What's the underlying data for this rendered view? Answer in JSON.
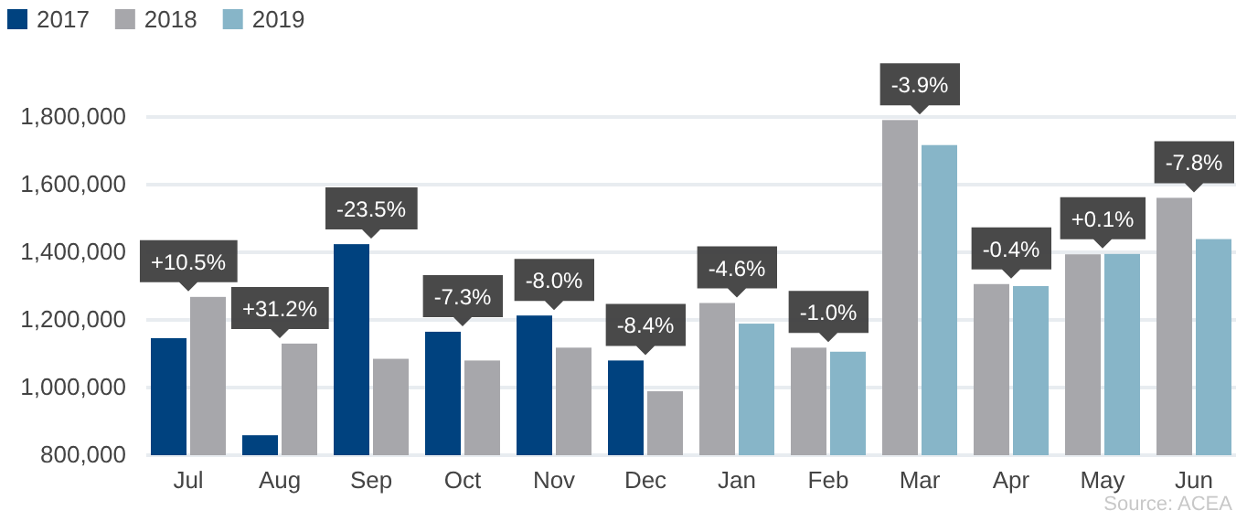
{
  "chart_data": {
    "type": "bar",
    "categories": [
      "Jul",
      "Aug",
      "Sep",
      "Oct",
      "Nov",
      "Dec",
      "Jan",
      "Feb",
      "Mar",
      "Apr",
      "May",
      "Jun"
    ],
    "series": [
      {
        "name": "2017",
        "color": "#00427f",
        "values": [
          1146000,
          859000,
          1424000,
          1165000,
          1213000,
          1080000,
          null,
          null,
          null,
          null,
          null,
          null
        ]
      },
      {
        "name": "2018",
        "color": "#a7a7ab",
        "values": [
          1268000,
          1130000,
          1085000,
          1080000,
          1118000,
          989000,
          1250000,
          1118000,
          1791000,
          1306000,
          1394000,
          1561000
        ]
      },
      {
        "name": "2019",
        "color": "#87b5c8",
        "values": [
          null,
          null,
          null,
          null,
          null,
          null,
          1189000,
          1106000,
          1717000,
          1300000,
          1395000,
          1439000
        ]
      }
    ],
    "ylim": [
      800000,
      1800000
    ],
    "yticks": [
      {
        "value": 800000,
        "label": "800,000"
      },
      {
        "value": 1000000,
        "label": "1,000,000"
      },
      {
        "value": 1200000,
        "label": "1,200,000"
      },
      {
        "value": 1400000,
        "label": "1,400,000"
      },
      {
        "value": 1600000,
        "label": "1,600,000"
      },
      {
        "value": 1800000,
        "label": "1,800,000"
      }
    ],
    "grid": "y",
    "legend": "top left",
    "annotations": [
      "+10.5%",
      "+31.2%",
      "-23.5%",
      "-7.3%",
      "-8.0%",
      "-8.4%",
      "-4.6%",
      "-1.0%",
      "-3.9%",
      "-0.4%",
      "+0.1%",
      "-7.8%",
      "Source:  ACEA"
    ]
  }
}
